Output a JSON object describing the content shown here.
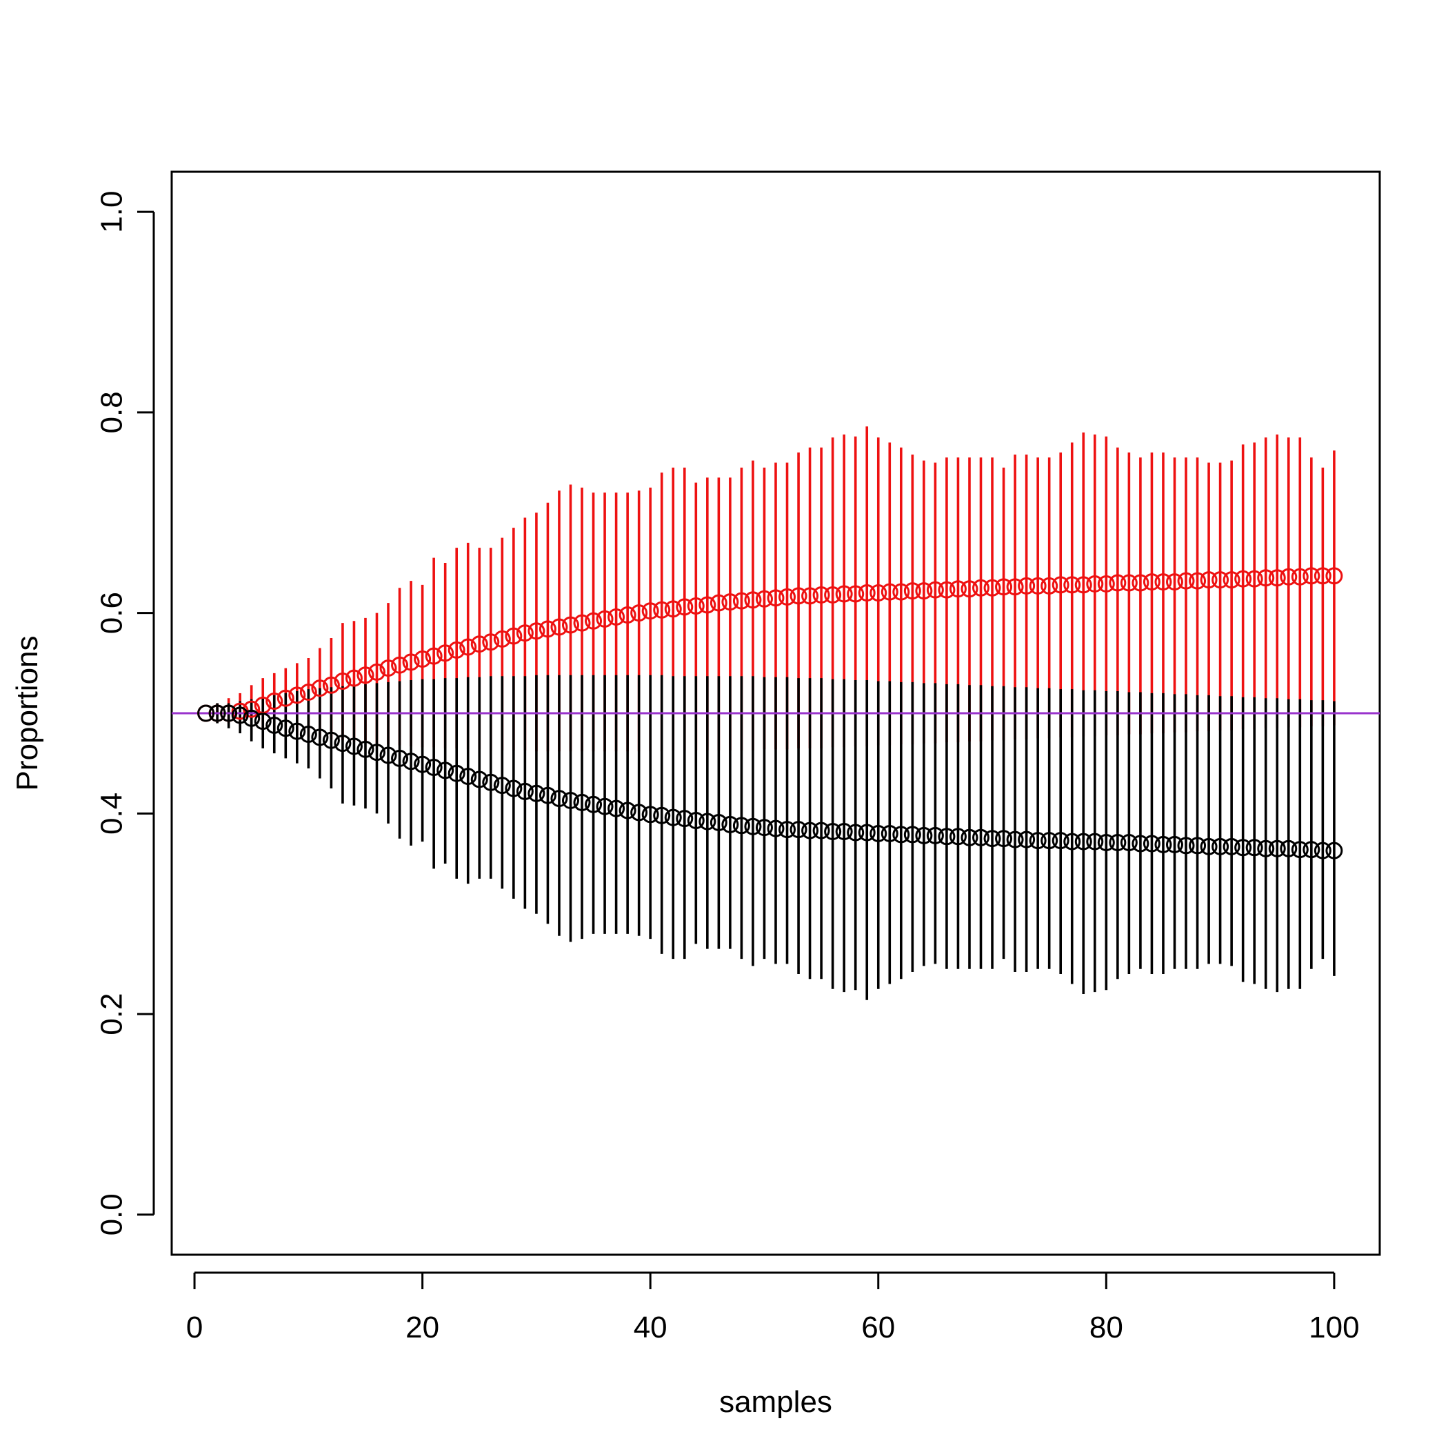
{
  "chart_data": {
    "type": "scatter",
    "xlabel": "samples",
    "ylabel": "Proportions",
    "xlim": [
      -2,
      104
    ],
    "ylim": [
      -0.04,
      1.04
    ],
    "xticks": [
      0,
      20,
      40,
      60,
      80,
      100
    ],
    "yticks": [
      0.0,
      0.2,
      0.4,
      0.6,
      0.8,
      1.0
    ],
    "xtick_labels": [
      "0",
      "20",
      "40",
      "60",
      "80",
      "100"
    ],
    "ytick_labels": [
      "0.0",
      "0.2",
      "0.4",
      "0.6",
      "0.8",
      "1.0"
    ],
    "reference_line": {
      "y": 0.5,
      "color": "#9933cc"
    },
    "grid": false,
    "legend": "none",
    "x": [
      1,
      2,
      3,
      4,
      5,
      6,
      7,
      8,
      9,
      10,
      11,
      12,
      13,
      14,
      15,
      16,
      17,
      18,
      19,
      20,
      21,
      22,
      23,
      24,
      25,
      26,
      27,
      28,
      29,
      30,
      31,
      32,
      33,
      34,
      35,
      36,
      37,
      38,
      39,
      40,
      41,
      42,
      43,
      44,
      45,
      46,
      47,
      48,
      49,
      50,
      51,
      52,
      53,
      54,
      55,
      56,
      57,
      58,
      59,
      60,
      61,
      62,
      63,
      64,
      65,
      66,
      67,
      68,
      69,
      70,
      71,
      72,
      73,
      74,
      75,
      76,
      77,
      78,
      79,
      80,
      81,
      82,
      83,
      84,
      85,
      86,
      87,
      88,
      89,
      90,
      91,
      92,
      93,
      94,
      95,
      96,
      97,
      98,
      99,
      100
    ],
    "series": [
      {
        "color": "#ee1111",
        "values": [
          0.5,
          0.5,
          0.5,
          0.502,
          0.504,
          0.508,
          0.512,
          0.515,
          0.518,
          0.521,
          0.525,
          0.528,
          0.532,
          0.535,
          0.538,
          0.541,
          0.545,
          0.548,
          0.551,
          0.554,
          0.557,
          0.56,
          0.563,
          0.566,
          0.569,
          0.571,
          0.574,
          0.577,
          0.58,
          0.582,
          0.584,
          0.586,
          0.588,
          0.59,
          0.592,
          0.594,
          0.596,
          0.598,
          0.6,
          0.602,
          0.603,
          0.604,
          0.606,
          0.607,
          0.608,
          0.61,
          0.611,
          0.612,
          0.613,
          0.614,
          0.615,
          0.616,
          0.617,
          0.617,
          0.618,
          0.618,
          0.619,
          0.619,
          0.62,
          0.62,
          0.621,
          0.621,
          0.622,
          0.622,
          0.623,
          0.623,
          0.624,
          0.624,
          0.625,
          0.625,
          0.626,
          0.626,
          0.627,
          0.627,
          0.627,
          0.628,
          0.628,
          0.628,
          0.629,
          0.629,
          0.63,
          0.63,
          0.63,
          0.631,
          0.631,
          0.631,
          0.632,
          0.632,
          0.633,
          0.633,
          0.633,
          0.634,
          0.634,
          0.635,
          0.635,
          0.636,
          0.636,
          0.637,
          0.637,
          0.637
        ],
        "lower": [
          0.5,
          0.5,
          0.49,
          0.488,
          0.486,
          0.484,
          0.482,
          0.48,
          0.478,
          0.476,
          0.475,
          0.474,
          0.473,
          0.472,
          0.471,
          0.47,
          0.469,
          0.468,
          0.467,
          0.466,
          0.466,
          0.465,
          0.465,
          0.464,
          0.464,
          0.463,
          0.463,
          0.463,
          0.463,
          0.462,
          0.462,
          0.462,
          0.462,
          0.462,
          0.462,
          0.462,
          0.462,
          0.462,
          0.462,
          0.462,
          0.462,
          0.463,
          0.463,
          0.463,
          0.463,
          0.463,
          0.463,
          0.463,
          0.463,
          0.464,
          0.464,
          0.464,
          0.465,
          0.465,
          0.465,
          0.466,
          0.466,
          0.467,
          0.467,
          0.468,
          0.468,
          0.469,
          0.469,
          0.47,
          0.47,
          0.471,
          0.471,
          0.472,
          0.472,
          0.473,
          0.473,
          0.474,
          0.474,
          0.475,
          0.475,
          0.476,
          0.476,
          0.477,
          0.477,
          0.478,
          0.478,
          0.479,
          0.479,
          0.48,
          0.48,
          0.481,
          0.481,
          0.482,
          0.482,
          0.483,
          0.483,
          0.484,
          0.484,
          0.485,
          0.485,
          0.486,
          0.486,
          0.487,
          0.487,
          0.488
        ],
        "upper": [
          0.5,
          0.51,
          0.515,
          0.52,
          0.528,
          0.535,
          0.54,
          0.545,
          0.55,
          0.555,
          0.565,
          0.575,
          0.59,
          0.592,
          0.595,
          0.6,
          0.61,
          0.625,
          0.632,
          0.628,
          0.655,
          0.65,
          0.665,
          0.67,
          0.665,
          0.665,
          0.675,
          0.685,
          0.695,
          0.7,
          0.71,
          0.722,
          0.728,
          0.725,
          0.72,
          0.72,
          0.72,
          0.72,
          0.722,
          0.725,
          0.74,
          0.745,
          0.745,
          0.73,
          0.735,
          0.735,
          0.735,
          0.745,
          0.752,
          0.745,
          0.75,
          0.75,
          0.76,
          0.765,
          0.765,
          0.775,
          0.778,
          0.776,
          0.786,
          0.775,
          0.77,
          0.765,
          0.758,
          0.752,
          0.75,
          0.755,
          0.755,
          0.755,
          0.755,
          0.755,
          0.745,
          0.758,
          0.758,
          0.755,
          0.755,
          0.76,
          0.77,
          0.78,
          0.778,
          0.776,
          0.765,
          0.76,
          0.755,
          0.76,
          0.76,
          0.755,
          0.755,
          0.755,
          0.75,
          0.75,
          0.752,
          0.768,
          0.77,
          0.775,
          0.778,
          0.775,
          0.775,
          0.755,
          0.745,
          0.762
        ]
      },
      {
        "color": "#000000",
        "values": [
          0.5,
          0.5,
          0.5,
          0.498,
          0.495,
          0.492,
          0.488,
          0.485,
          0.482,
          0.479,
          0.476,
          0.473,
          0.47,
          0.467,
          0.464,
          0.461,
          0.458,
          0.455,
          0.452,
          0.449,
          0.446,
          0.443,
          0.44,
          0.437,
          0.434,
          0.431,
          0.428,
          0.425,
          0.422,
          0.42,
          0.418,
          0.415,
          0.413,
          0.411,
          0.409,
          0.407,
          0.405,
          0.403,
          0.401,
          0.399,
          0.398,
          0.396,
          0.395,
          0.393,
          0.392,
          0.391,
          0.389,
          0.388,
          0.387,
          0.386,
          0.385,
          0.384,
          0.384,
          0.383,
          0.383,
          0.382,
          0.382,
          0.381,
          0.381,
          0.38,
          0.38,
          0.379,
          0.379,
          0.378,
          0.378,
          0.377,
          0.377,
          0.376,
          0.376,
          0.375,
          0.375,
          0.374,
          0.374,
          0.373,
          0.373,
          0.373,
          0.372,
          0.372,
          0.372,
          0.371,
          0.371,
          0.371,
          0.37,
          0.37,
          0.369,
          0.369,
          0.368,
          0.368,
          0.367,
          0.367,
          0.367,
          0.366,
          0.366,
          0.365,
          0.365,
          0.365,
          0.364,
          0.364,
          0.363,
          0.363
        ],
        "lower": [
          0.5,
          0.49,
          0.485,
          0.48,
          0.472,
          0.465,
          0.46,
          0.455,
          0.45,
          0.445,
          0.435,
          0.425,
          0.41,
          0.408,
          0.405,
          0.4,
          0.39,
          0.375,
          0.368,
          0.372,
          0.345,
          0.35,
          0.335,
          0.33,
          0.335,
          0.335,
          0.325,
          0.315,
          0.305,
          0.3,
          0.29,
          0.278,
          0.272,
          0.275,
          0.28,
          0.28,
          0.28,
          0.28,
          0.278,
          0.275,
          0.26,
          0.255,
          0.255,
          0.27,
          0.265,
          0.265,
          0.265,
          0.255,
          0.248,
          0.255,
          0.25,
          0.25,
          0.24,
          0.235,
          0.235,
          0.225,
          0.222,
          0.224,
          0.214,
          0.225,
          0.23,
          0.235,
          0.242,
          0.248,
          0.25,
          0.245,
          0.245,
          0.245,
          0.245,
          0.245,
          0.255,
          0.242,
          0.242,
          0.245,
          0.245,
          0.24,
          0.23,
          0.22,
          0.222,
          0.224,
          0.235,
          0.24,
          0.245,
          0.24,
          0.24,
          0.245,
          0.245,
          0.245,
          0.25,
          0.25,
          0.248,
          0.232,
          0.23,
          0.225,
          0.222,
          0.225,
          0.225,
          0.245,
          0.255,
          0.238
        ],
        "upper": [
          0.5,
          0.51,
          0.51,
          0.512,
          0.514,
          0.516,
          0.518,
          0.52,
          0.522,
          0.524,
          0.525,
          0.526,
          0.527,
          0.528,
          0.529,
          0.53,
          0.531,
          0.532,
          0.533,
          0.534,
          0.534,
          0.535,
          0.535,
          0.536,
          0.536,
          0.537,
          0.537,
          0.537,
          0.537,
          0.538,
          0.538,
          0.538,
          0.538,
          0.538,
          0.538,
          0.538,
          0.538,
          0.538,
          0.538,
          0.538,
          0.538,
          0.537,
          0.537,
          0.537,
          0.537,
          0.537,
          0.537,
          0.537,
          0.537,
          0.536,
          0.536,
          0.536,
          0.535,
          0.535,
          0.535,
          0.534,
          0.534,
          0.533,
          0.533,
          0.532,
          0.532,
          0.531,
          0.531,
          0.53,
          0.53,
          0.529,
          0.529,
          0.528,
          0.528,
          0.527,
          0.527,
          0.526,
          0.526,
          0.525,
          0.525,
          0.524,
          0.524,
          0.523,
          0.523,
          0.522,
          0.522,
          0.521,
          0.521,
          0.52,
          0.52,
          0.519,
          0.519,
          0.518,
          0.518,
          0.517,
          0.517,
          0.516,
          0.516,
          0.515,
          0.515,
          0.514,
          0.514,
          0.513,
          0.513,
          0.512
        ]
      }
    ]
  }
}
